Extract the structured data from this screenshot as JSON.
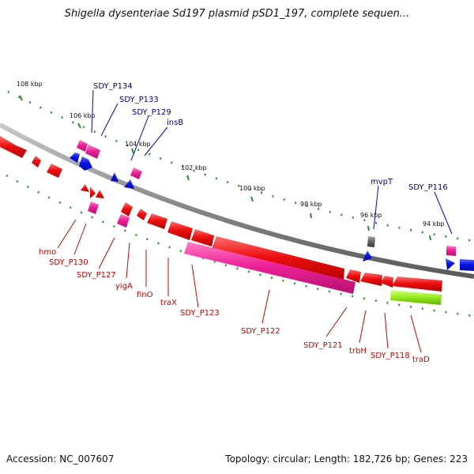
{
  "title": "Shigella dysenteriae Sd197 plasmid pSD1_197, complete sequen...",
  "footer": {
    "accession": "Accession: NC_007607",
    "topology": "Topology: circular; Length: 182,726 bp; Genes: 223"
  },
  "colors": {
    "backbone": "#8c8c8c",
    "tick": "#2e8b2e",
    "red_gene": "#ee1111",
    "pink_gene": "#ee2299",
    "blue_gene": "#0a14e6",
    "gray_gene": "#666666",
    "green_gene": "#99ee22",
    "label_top": "#00008b",
    "label_bottom": "#cc0000"
  },
  "tick_labels": [
    "108 kbp",
    "106 kbp",
    "104 kbp",
    "102 kbp",
    "100 kbp",
    "98 kbp",
    "96 kbp",
    "94 kbp"
  ],
  "gene_labels_top": [
    "SDY_P134",
    "SDY_P133",
    "SDY_P129",
    "insB",
    "mvpT",
    "SDY_P116"
  ],
  "gene_labels_bottom": [
    "hmo",
    "SDY_P130",
    "SDY_P127",
    "yigA",
    "finO",
    "traX",
    "SDY_P123",
    "SDY_P122",
    "SDY_P121",
    "trbH",
    "SDY_P118",
    "traD"
  ]
}
